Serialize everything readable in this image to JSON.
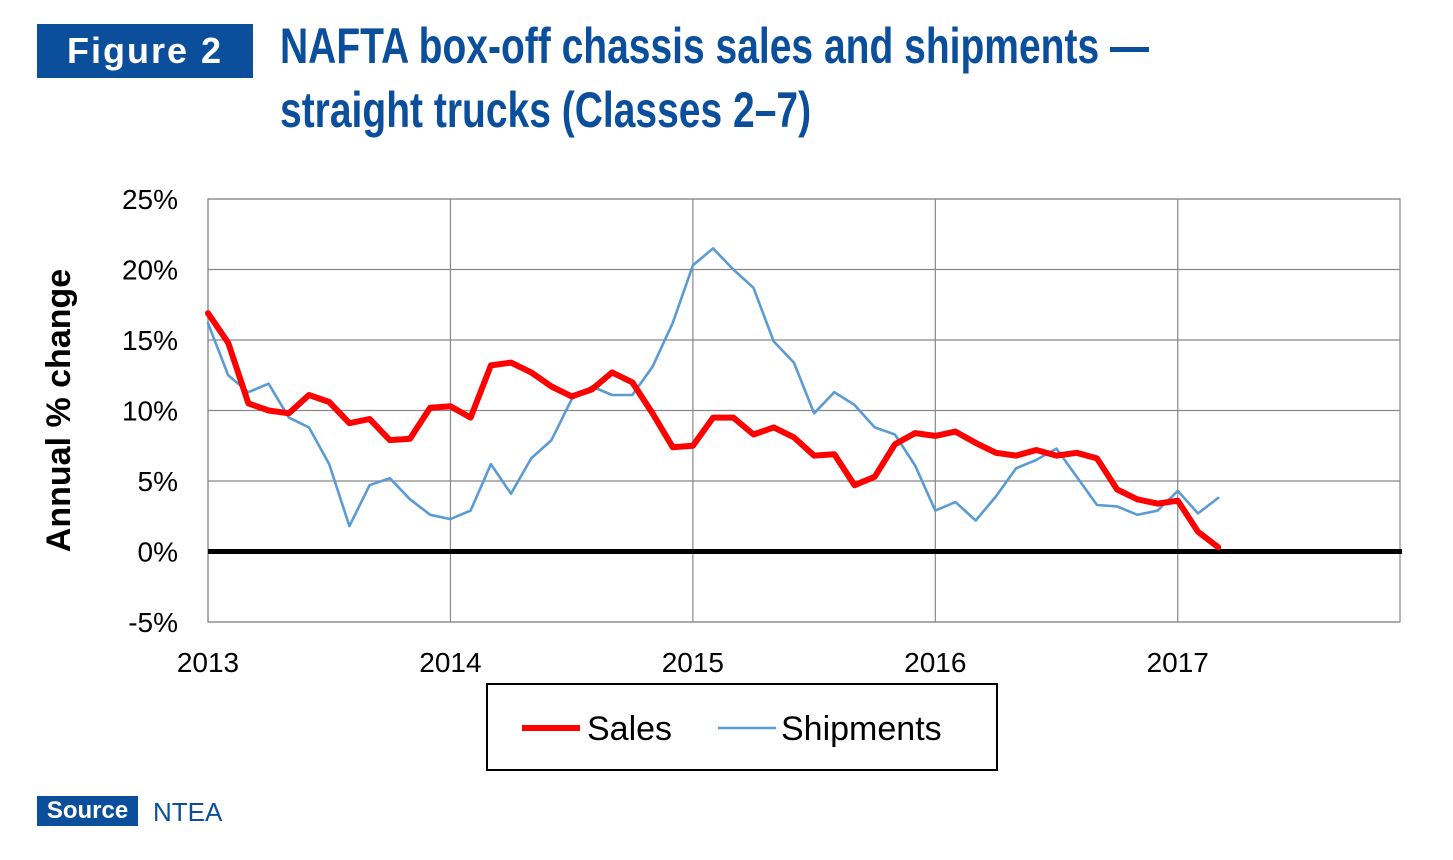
{
  "header": {
    "figure_label": "Figure 2",
    "title_line1": "NAFTA box-off chassis sales and shipments —",
    "title_line2": "straight trucks (Classes 2–7)"
  },
  "footer": {
    "source_label": "Source",
    "source_text": "NTEA"
  },
  "colors": {
    "brand": "#0b4f9c",
    "sales": "#ff0000",
    "shipments": "#5b9bd5",
    "zero_line": "#000000",
    "grid": "#888888"
  },
  "chart_data": {
    "type": "line",
    "title": "",
    "xlabel": "",
    "ylabel": "Annual % change",
    "x_ticks": [
      "2013",
      "2014",
      "2015",
      "2016",
      "2017"
    ],
    "y_ticks": [
      "25%",
      "20%",
      "15%",
      "10%",
      "5%",
      "0%",
      "-5%"
    ],
    "xlim": [
      2013.0,
      2017.9167
    ],
    "ylim": [
      -5,
      25
    ],
    "grid": true,
    "legend_position": "bottom",
    "series": [
      {
        "name": "Sales",
        "x": [
          2013.0,
          2013.0833,
          2013.1667,
          2013.25,
          2013.3333,
          2013.4167,
          2013.5,
          2013.5833,
          2013.6667,
          2013.75,
          2013.8333,
          2013.9167,
          2014.0,
          2014.0833,
          2014.1667,
          2014.25,
          2014.3333,
          2014.4167,
          2014.5,
          2014.5833,
          2014.6667,
          2014.75,
          2014.8333,
          2014.9167,
          2015.0,
          2015.0833,
          2015.1667,
          2015.25,
          2015.3333,
          2015.4167,
          2015.5,
          2015.5833,
          2015.6667,
          2015.75,
          2015.8333,
          2015.9167,
          2016.0,
          2016.0833,
          2016.1667,
          2016.25,
          2016.3333,
          2016.4167,
          2016.5,
          2016.5833,
          2016.6667,
          2016.75,
          2016.8333,
          2016.9167,
          2017.0,
          2017.0833,
          2017.1667
        ],
        "values": [
          16.9,
          14.8,
          10.5,
          10.0,
          9.8,
          11.1,
          10.6,
          9.1,
          9.4,
          7.9,
          8.0,
          10.2,
          10.3,
          9.5,
          13.2,
          13.4,
          12.7,
          11.7,
          11.0,
          11.5,
          12.7,
          12.0,
          9.8,
          7.4,
          7.5,
          9.5,
          9.5,
          8.3,
          8.8,
          8.1,
          6.8,
          6.9,
          4.7,
          5.3,
          7.6,
          8.4,
          8.2,
          8.5,
          7.7,
          7.0,
          6.8,
          7.2,
          6.8,
          7.0,
          6.6,
          4.4,
          3.7,
          3.4,
          3.6,
          1.4,
          0.3
        ]
      },
      {
        "name": "Shipments",
        "x": [
          2013.0,
          2013.0833,
          2013.1667,
          2013.25,
          2013.3333,
          2013.4167,
          2013.5,
          2013.5833,
          2013.6667,
          2013.75,
          2013.8333,
          2013.9167,
          2014.0,
          2014.0833,
          2014.1667,
          2014.25,
          2014.3333,
          2014.4167,
          2014.5,
          2014.5833,
          2014.6667,
          2014.75,
          2014.8333,
          2014.9167,
          2015.0,
          2015.0833,
          2015.1667,
          2015.25,
          2015.3333,
          2015.4167,
          2015.5,
          2015.5833,
          2015.6667,
          2015.75,
          2015.8333,
          2015.9167,
          2016.0,
          2016.0833,
          2016.1667,
          2016.25,
          2016.3333,
          2016.4167,
          2016.5,
          2016.5833,
          2016.6667,
          2016.75,
          2016.8333,
          2016.9167,
          2017.0,
          2017.0833,
          2017.1667
        ],
        "values": [
          16.2,
          12.5,
          11.3,
          11.9,
          9.5,
          8.8,
          6.2,
          1.8,
          4.7,
          5.2,
          3.7,
          2.6,
          2.3,
          2.9,
          6.2,
          4.1,
          6.6,
          7.9,
          10.8,
          11.7,
          11.1,
          11.1,
          13.1,
          16.2,
          20.3,
          21.5,
          20.0,
          18.7,
          14.9,
          13.4,
          9.8,
          11.3,
          10.4,
          8.8,
          8.3,
          6.1,
          2.9,
          3.5,
          2.2,
          3.9,
          5.9,
          6.5,
          7.3,
          5.3,
          3.3,
          3.2,
          2.6,
          2.9,
          4.3,
          2.7,
          3.8
        ]
      }
    ]
  }
}
